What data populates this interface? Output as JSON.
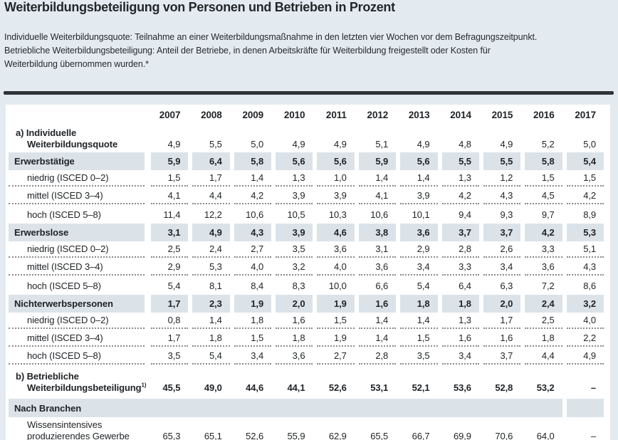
{
  "title": "Weiterbildungsbeteiligung von Personen und Betrieben in Prozent",
  "subtitle_lines": [
    "Individuelle Weiterbildungsquote: Teilnahme an einer Weiterbildungsmaßnahme in den letzten vier Wochen vor dem Befragungszeitpunkt.",
    "Betriebliche Weiterbildungsbeteiligung: Anteil der Betriebe, in denen Arbeitskräfte für Weiterbildung freigestellt oder Kosten für",
    "Weiterbildung übernommen wurden.*"
  ],
  "colors": {
    "page_bg": "#e4ebf0",
    "card_bg": "#ffffff",
    "band": "#dbe3e9",
    "rule": "#2e3336",
    "text": "#212427",
    "dotted": "#8b8b8b"
  },
  "table": {
    "years": [
      "2007",
      "2008",
      "2009",
      "2010",
      "2011",
      "2012",
      "2013",
      "2014",
      "2015",
      "2016",
      "2017"
    ],
    "rows": [
      {
        "kind": "twoline",
        "label1": "a) Individuelle",
        "label2": "Weiterbildungsquote",
        "bold_values": false,
        "values": [
          "4,9",
          "5,5",
          "5,0",
          "4,9",
          "4,9",
          "5,1",
          "4,9",
          "4,8",
          "4,9",
          "5,2",
          "5,0"
        ]
      },
      {
        "kind": "band",
        "label": "Erwerbstätige",
        "values": [
          "5,9",
          "6,4",
          "5,8",
          "5,6",
          "5,6",
          "5,9",
          "5,6",
          "5,5",
          "5,5",
          "5,8",
          "5,4"
        ]
      },
      {
        "kind": "sub",
        "dotted": true,
        "label": "niedrig (ISCED 0–2)",
        "values": [
          "1,5",
          "1,7",
          "1,4",
          "1,3",
          "1,0",
          "1,4",
          "1,4",
          "1,3",
          "1,2",
          "1,5",
          "1,5"
        ]
      },
      {
        "kind": "sub",
        "dotted": true,
        "label": "mittel (ISCED 3–4)",
        "values": [
          "4,1",
          "4,4",
          "4,2",
          "3,9",
          "3,9",
          "4,1",
          "3,9",
          "4,2",
          "4,3",
          "4,5",
          "4,2"
        ]
      },
      {
        "kind": "sub",
        "dotted": false,
        "label": "hoch (ISCED 5–8)",
        "values": [
          "11,4",
          "12,2",
          "10,6",
          "10,5",
          "10,3",
          "10,6",
          "10,1",
          "9,4",
          "9,3",
          "9,7",
          "8,9"
        ]
      },
      {
        "kind": "band",
        "label": "Erwerbslose",
        "values": [
          "3,1",
          "4,9",
          "4,3",
          "3,9",
          "4,6",
          "3,8",
          "3,6",
          "3,7",
          "3,7",
          "4,2",
          "5,3"
        ]
      },
      {
        "kind": "sub",
        "dotted": true,
        "label": "niedrig (ISCED 0–2)",
        "values": [
          "2,5",
          "2,4",
          "2,7",
          "3,5",
          "3,6",
          "3,1",
          "2,9",
          "2,8",
          "2,6",
          "3,3",
          "5,1"
        ]
      },
      {
        "kind": "sub",
        "dotted": true,
        "label": "mittel (ISCED 3–4)",
        "values": [
          "2,9",
          "5,3",
          "4,0",
          "3,2",
          "4,0",
          "3,6",
          "3,4",
          "3,3",
          "3,4",
          "3,6",
          "4,3"
        ]
      },
      {
        "kind": "sub",
        "dotted": false,
        "label": "hoch (ISCED 5–8)",
        "values": [
          "5,4",
          "8,1",
          "8,4",
          "8,3",
          "10,0",
          "6,6",
          "5,4",
          "6,4",
          "6,3",
          "7,2",
          "8,6"
        ]
      },
      {
        "kind": "band",
        "label": "Nichterwerbspersonen",
        "values": [
          "1,7",
          "2,3",
          "1,9",
          "2,0",
          "1,9",
          "1,6",
          "1,8",
          "1,8",
          "2,0",
          "2,4",
          "3,2"
        ]
      },
      {
        "kind": "sub",
        "dotted": true,
        "label": "niedrig (ISCED 0–2)",
        "values": [
          "0,8",
          "1,4",
          "1,8",
          "1,6",
          "1,5",
          "1,4",
          "1,4",
          "1,3",
          "1,7",
          "2,5",
          "4,0"
        ]
      },
      {
        "kind": "sub",
        "dotted": true,
        "label": "mittel (ISCED 3–4)",
        "values": [
          "1,7",
          "1,8",
          "1,5",
          "1,8",
          "1,9",
          "1,4",
          "1,5",
          "1,6",
          "1,6",
          "1,8",
          "2,2"
        ]
      },
      {
        "kind": "sub",
        "dotted": true,
        "label": "hoch (ISCED 5–8)",
        "values": [
          "3,5",
          "5,4",
          "3,4",
          "3,6",
          "2,7",
          "2,8",
          "3,5",
          "3,4",
          "3,7",
          "4,4",
          "4,9"
        ]
      },
      {
        "kind": "twoline_b",
        "label1": "b) Betriebliche",
        "label2": "Weiterbildungsbeteiligung",
        "sup": "1)",
        "bold_values": true,
        "values": [
          "45,5",
          "49,0",
          "44,6",
          "44,1",
          "52,6",
          "53,1",
          "52,1",
          "53,6",
          "52,8",
          "53,2",
          "–"
        ]
      },
      {
        "kind": "section",
        "label": "Nach Branchen"
      },
      {
        "kind": "twoline_sub",
        "label1": "Wissensintensives",
        "label2": "produzierendes Gewerbe",
        "bold_values": false,
        "values": [
          "65,3",
          "65,1",
          "52,6",
          "55,9",
          "62,9",
          "65,5",
          "66,7",
          "69,9",
          "70,6",
          "64,0",
          "–"
        ]
      }
    ]
  }
}
